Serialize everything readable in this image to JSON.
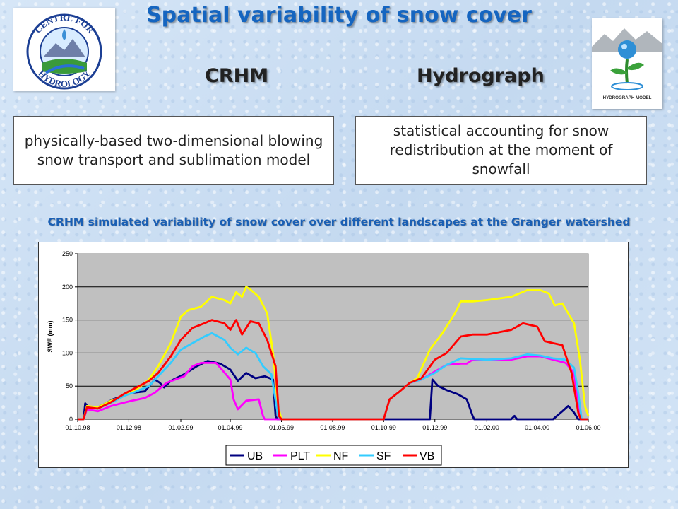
{
  "title": "Spatial variability of snow cover",
  "logo_left": {
    "text_top": "CENTRE FOR",
    "text_bottom": "HYDROLOGY"
  },
  "logo_right": {
    "text": "HYDROGRAPH MODEL"
  },
  "left": {
    "heading": "CRHM",
    "description": "physically-based two-dimensional blowing snow transport and sublimation model"
  },
  "right": {
    "heading": "Hydrograph",
    "description": "statistical accounting for snow redistribution at the moment of snowfall"
  },
  "caption": "CRHM simulated variability of snow cover over different landscapes at the Granger watershed",
  "colors": {
    "title": "#1565c0",
    "caption": "#1a5fb4",
    "plot_bg": "#c0c0c0"
  },
  "chart_data": {
    "type": "line",
    "title": "",
    "xlabel": "",
    "ylabel": "SWE (mm)",
    "ylim": [
      0,
      250
    ],
    "yticks": [
      0,
      50,
      100,
      150,
      200,
      250
    ],
    "xlim": [
      "1998-10-01",
      "2000-06-01"
    ],
    "xticks": [
      {
        "date": "1998-10-01",
        "label": "01.10.98"
      },
      {
        "date": "1998-12-01",
        "label": "01.12.98"
      },
      {
        "date": "1999-02-01",
        "label": "01.02.99"
      },
      {
        "date": "1999-04-01",
        "label": "01.04.99"
      },
      {
        "date": "1999-06-01",
        "label": "01.06.99"
      },
      {
        "date": "1999-08-01",
        "label": "01.08.99"
      },
      {
        "date": "1999-10-01",
        "label": "01.10.99"
      },
      {
        "date": "1999-12-01",
        "label": "01.12.99"
      },
      {
        "date": "2000-02-01",
        "label": "01.02.00"
      },
      {
        "date": "2000-04-01",
        "label": "01.04.00"
      },
      {
        "date": "2000-06-01",
        "label": "01.06.00"
      }
    ],
    "grid": "horizontal",
    "legend": "bottom",
    "series": [
      {
        "name": "UB",
        "color": "#000080",
        "points": [
          [
            "1998-10-01",
            0
          ],
          [
            "1998-10-08",
            0
          ],
          [
            "1998-10-10",
            24
          ],
          [
            "1998-10-14",
            18
          ],
          [
            "1998-10-25",
            18
          ],
          [
            "1998-11-05",
            25
          ],
          [
            "1998-11-12",
            30
          ],
          [
            "1998-11-25",
            36
          ],
          [
            "1998-12-05",
            40
          ],
          [
            "1998-12-20",
            42
          ],
          [
            "1999-01-01",
            60
          ],
          [
            "1999-01-07",
            55
          ],
          [
            "1999-01-12",
            48
          ],
          [
            "1999-01-20",
            58
          ],
          [
            "1999-02-05",
            68
          ],
          [
            "1999-02-20",
            80
          ],
          [
            "1999-03-05",
            88
          ],
          [
            "1999-03-20",
            84
          ],
          [
            "1999-04-01",
            75
          ],
          [
            "1999-04-10",
            58
          ],
          [
            "1999-04-20",
            70
          ],
          [
            "1999-05-01",
            62
          ],
          [
            "1999-05-12",
            65
          ],
          [
            "1999-05-22",
            60
          ],
          [
            "1999-05-25",
            5
          ],
          [
            "1999-05-27",
            0
          ],
          [
            "1999-11-25",
            0
          ],
          [
            "1999-11-28",
            60
          ],
          [
            "1999-12-05",
            50
          ],
          [
            "1999-12-15",
            44
          ],
          [
            "1999-12-28",
            38
          ],
          [
            "2000-01-08",
            30
          ],
          [
            "2000-01-15",
            5
          ],
          [
            "2000-01-17",
            0
          ],
          [
            "2000-03-01",
            0
          ],
          [
            "2000-03-05",
            5
          ],
          [
            "2000-03-08",
            0
          ],
          [
            "2000-04-20",
            0
          ],
          [
            "2000-05-01",
            12
          ],
          [
            "2000-05-08",
            20
          ],
          [
            "2000-05-15",
            10
          ],
          [
            "2000-05-20",
            0
          ],
          [
            "2000-06-01",
            0
          ]
        ]
      },
      {
        "name": "PLT",
        "color": "#ff00ff",
        "points": [
          [
            "1998-10-01",
            0
          ],
          [
            "1998-10-08",
            0
          ],
          [
            "1998-10-12",
            15
          ],
          [
            "1998-10-25",
            12
          ],
          [
            "1998-11-10",
            20
          ],
          [
            "1998-11-25",
            25
          ],
          [
            "1998-12-05",
            28
          ],
          [
            "1998-12-20",
            32
          ],
          [
            "1999-01-01",
            40
          ],
          [
            "1999-01-15",
            55
          ],
          [
            "1999-02-05",
            65
          ],
          [
            "1999-02-15",
            80
          ],
          [
            "1999-02-25",
            85
          ],
          [
            "1999-03-15",
            85
          ],
          [
            "1999-03-22",
            75
          ],
          [
            "1999-04-01",
            60
          ],
          [
            "1999-04-05",
            30
          ],
          [
            "1999-04-10",
            15
          ],
          [
            "1999-04-20",
            28
          ],
          [
            "1999-05-05",
            30
          ],
          [
            "1999-05-10",
            5
          ],
          [
            "1999-05-12",
            0
          ],
          [
            "1999-10-01",
            0
          ],
          [
            "1999-10-08",
            30
          ],
          [
            "1999-10-20",
            42
          ],
          [
            "1999-11-01",
            55
          ],
          [
            "1999-11-15",
            60
          ],
          [
            "1999-12-01",
            72
          ],
          [
            "1999-12-15",
            82
          ],
          [
            "2000-01-01",
            84
          ],
          [
            "2000-01-08",
            84
          ],
          [
            "2000-01-15",
            90
          ],
          [
            "2000-02-01",
            90
          ],
          [
            "2000-03-01",
            90
          ],
          [
            "2000-03-20",
            95
          ],
          [
            "2000-04-05",
            95
          ],
          [
            "2000-04-20",
            90
          ],
          [
            "2000-05-05",
            85
          ],
          [
            "2000-05-15",
            70
          ],
          [
            "2000-05-20",
            20
          ],
          [
            "2000-05-23",
            0
          ],
          [
            "2000-06-01",
            0
          ]
        ]
      },
      {
        "name": "NF",
        "color": "#ffff00",
        "points": [
          [
            "1998-10-01",
            0
          ],
          [
            "1998-10-08",
            0
          ],
          [
            "1998-10-12",
            20
          ],
          [
            "1998-10-25",
            18
          ],
          [
            "1998-11-10",
            28
          ],
          [
            "1998-11-25",
            35
          ],
          [
            "1998-12-10",
            45
          ],
          [
            "1998-12-25",
            60
          ],
          [
            "1999-01-05",
            80
          ],
          [
            "1999-01-20",
            115
          ],
          [
            "1999-02-01",
            155
          ],
          [
            "1999-02-10",
            165
          ],
          [
            "1999-02-25",
            170
          ],
          [
            "1999-03-10",
            185
          ],
          [
            "1999-03-25",
            180
          ],
          [
            "1999-04-01",
            175
          ],
          [
            "1999-04-08",
            192
          ],
          [
            "1999-04-15",
            185
          ],
          [
            "1999-04-20",
            200
          ],
          [
            "1999-04-25",
            196
          ],
          [
            "1999-05-05",
            185
          ],
          [
            "1999-05-15",
            160
          ],
          [
            "1999-05-22",
            100
          ],
          [
            "1999-05-28",
            20
          ],
          [
            "1999-06-01",
            0
          ],
          [
            "1999-10-01",
            0
          ],
          [
            "1999-10-08",
            30
          ],
          [
            "1999-10-20",
            42
          ],
          [
            "1999-11-01",
            55
          ],
          [
            "1999-11-10",
            62
          ],
          [
            "1999-11-25",
            105
          ],
          [
            "1999-12-10",
            130
          ],
          [
            "1999-12-25",
            160
          ],
          [
            "2000-01-01",
            178
          ],
          [
            "2000-01-15",
            178
          ],
          [
            "2000-02-01",
            180
          ],
          [
            "2000-03-01",
            185
          ],
          [
            "2000-03-20",
            195
          ],
          [
            "2000-04-05",
            195
          ],
          [
            "2000-04-15",
            190
          ],
          [
            "2000-04-22",
            172
          ],
          [
            "2000-05-01",
            175
          ],
          [
            "2000-05-15",
            145
          ],
          [
            "2000-05-22",
            90
          ],
          [
            "2000-05-28",
            20
          ],
          [
            "2000-06-01",
            5
          ]
        ]
      },
      {
        "name": "SF",
        "color": "#33ccff",
        "points": [
          [
            "1998-10-01",
            0
          ],
          [
            "1998-10-08",
            0
          ],
          [
            "1998-10-12",
            18
          ],
          [
            "1998-10-25",
            16
          ],
          [
            "1998-11-10",
            25
          ],
          [
            "1998-11-25",
            35
          ],
          [
            "1998-12-10",
            42
          ],
          [
            "1998-12-25",
            50
          ],
          [
            "1999-01-05",
            65
          ],
          [
            "1999-01-20",
            85
          ],
          [
            "1999-02-01",
            105
          ],
          [
            "1999-02-15",
            115
          ],
          [
            "1999-03-01",
            125
          ],
          [
            "1999-03-10",
            130
          ],
          [
            "1999-03-25",
            120
          ],
          [
            "1999-04-01",
            108
          ],
          [
            "1999-04-10",
            98
          ],
          [
            "1999-04-20",
            108
          ],
          [
            "1999-05-01",
            100
          ],
          [
            "1999-05-10",
            80
          ],
          [
            "1999-05-20",
            68
          ],
          [
            "1999-05-28",
            5
          ],
          [
            "1999-06-01",
            0
          ],
          [
            "1999-10-01",
            0
          ],
          [
            "1999-10-08",
            30
          ],
          [
            "1999-10-20",
            42
          ],
          [
            "1999-11-01",
            55
          ],
          [
            "1999-11-15",
            60
          ],
          [
            "1999-12-01",
            70
          ],
          [
            "1999-12-15",
            82
          ],
          [
            "2000-01-01",
            92
          ],
          [
            "2000-02-01",
            90
          ],
          [
            "2000-03-01",
            92
          ],
          [
            "2000-03-20",
            98
          ],
          [
            "2000-04-05",
            96
          ],
          [
            "2000-04-20",
            92
          ],
          [
            "2000-05-05",
            90
          ],
          [
            "2000-05-15",
            78
          ],
          [
            "2000-05-20",
            40
          ],
          [
            "2000-05-24",
            0
          ],
          [
            "2000-06-01",
            0
          ]
        ]
      },
      {
        "name": "VB",
        "color": "#ff0000",
        "points": [
          [
            "1998-10-01",
            0
          ],
          [
            "1998-10-08",
            0
          ],
          [
            "1998-10-12",
            18
          ],
          [
            "1998-10-25",
            16
          ],
          [
            "1998-11-10",
            26
          ],
          [
            "1998-11-25",
            38
          ],
          [
            "1998-12-10",
            48
          ],
          [
            "1998-12-25",
            58
          ],
          [
            "1999-01-05",
            70
          ],
          [
            "1999-01-20",
            95
          ],
          [
            "1999-02-01",
            120
          ],
          [
            "1999-02-15",
            138
          ],
          [
            "1999-03-01",
            145
          ],
          [
            "1999-03-10",
            150
          ],
          [
            "1999-03-25",
            145
          ],
          [
            "1999-04-01",
            135
          ],
          [
            "1999-04-08",
            150
          ],
          [
            "1999-04-15",
            128
          ],
          [
            "1999-04-25",
            148
          ],
          [
            "1999-05-05",
            145
          ],
          [
            "1999-05-15",
            120
          ],
          [
            "1999-05-25",
            80
          ],
          [
            "1999-05-29",
            5
          ],
          [
            "1999-06-01",
            0
          ],
          [
            "1999-10-01",
            0
          ],
          [
            "1999-10-08",
            30
          ],
          [
            "1999-10-20",
            42
          ],
          [
            "1999-11-01",
            55
          ],
          [
            "1999-11-15",
            62
          ],
          [
            "1999-12-01",
            90
          ],
          [
            "1999-12-15",
            100
          ],
          [
            "2000-01-01",
            125
          ],
          [
            "2000-01-15",
            128
          ],
          [
            "2000-02-01",
            128
          ],
          [
            "2000-03-01",
            135
          ],
          [
            "2000-03-15",
            145
          ],
          [
            "2000-04-01",
            140
          ],
          [
            "2000-04-10",
            118
          ],
          [
            "2000-04-20",
            115
          ],
          [
            "2000-05-01",
            112
          ],
          [
            "2000-05-12",
            70
          ],
          [
            "2000-05-20",
            10
          ],
          [
            "2000-05-23",
            0
          ],
          [
            "2000-06-01",
            0
          ]
        ]
      }
    ]
  }
}
